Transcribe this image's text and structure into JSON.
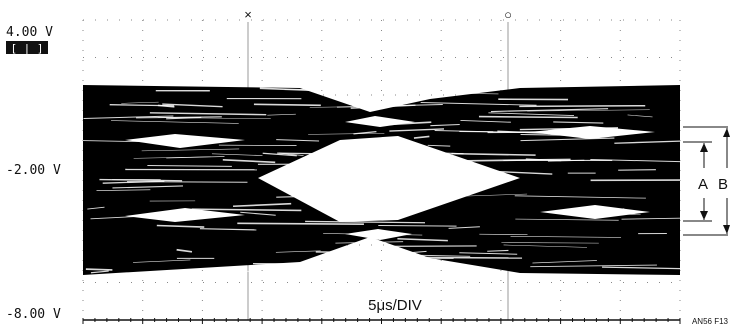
{
  "chart_data": {
    "type": "eye-diagram",
    "y_axis_labels": [
      "4.00 V",
      "-2.00 V",
      "-8.00 V"
    ],
    "y_range_volts": [
      -8.0,
      4.0
    ],
    "channel_indicator": "[ | ]",
    "cursor_markers": [
      "×",
      "○"
    ],
    "time_base": "5μs/DIV",
    "measurement_labels": [
      "A",
      "B"
    ],
    "figure_id": "AN56 F13",
    "signal_color": "#000000",
    "background_color": "#ffffff",
    "grid": "dotted"
  }
}
